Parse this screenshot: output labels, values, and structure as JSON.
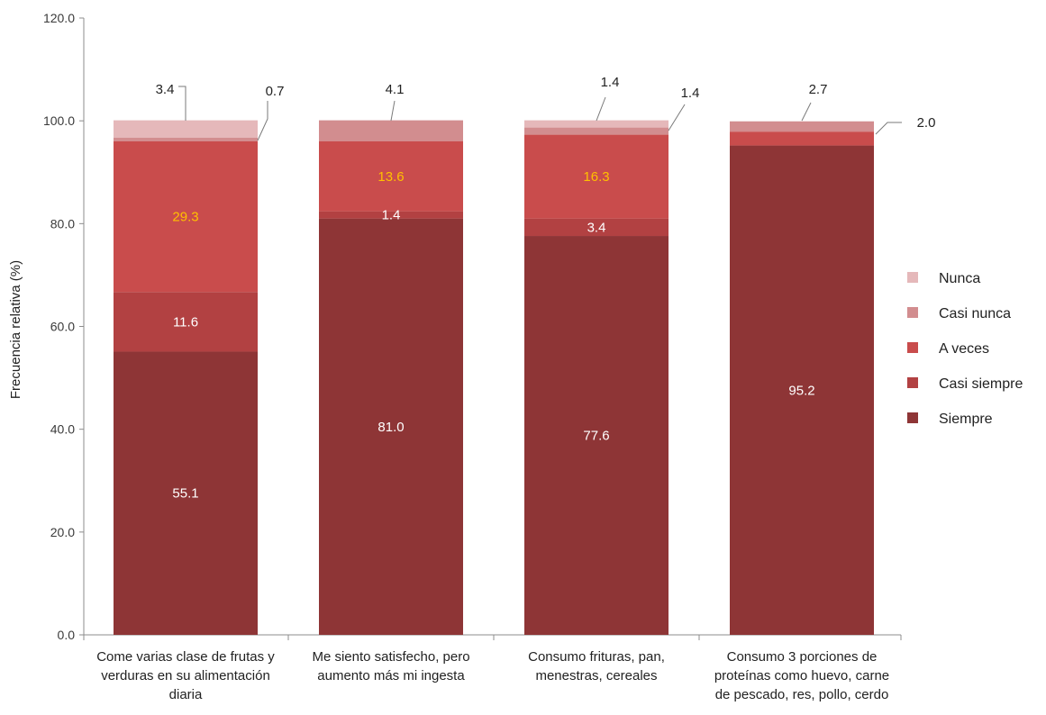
{
  "chart_data": {
    "type": "bar",
    "stacked": true,
    "ylabel": "Frecuencia relativa (%)",
    "ylim": [
      0,
      120
    ],
    "yticks": [
      "0.0",
      "20.0",
      "40.0",
      "60.0",
      "80.0",
      "100.0",
      "120.0"
    ],
    "grid": false,
    "legend_position": "right",
    "categories": [
      [
        "Come varias clase de frutas y",
        "verduras en su alimentación",
        "diaria"
      ],
      [
        "Me siento satisfecho, pero",
        "aumento más mi ingesta"
      ],
      [
        "Consumo frituras, pan,",
        "menestras, cereales"
      ],
      [
        "Consumo 3 porciones de",
        "proteínas como huevo, carne",
        "de pescado, res, pollo, cerdo"
      ]
    ],
    "series": [
      {
        "name": "Siempre",
        "color": "#8e3536",
        "label_color": "#ffffff",
        "values": [
          55.1,
          81.0,
          77.6,
          95.2
        ],
        "labels": [
          "55.1",
          "81.0",
          "77.6",
          "95.2"
        ]
      },
      {
        "name": "Casi siempre",
        "color": "#b24142",
        "label_color": "#ffffff",
        "values": [
          11.6,
          1.4,
          3.4,
          0.0
        ],
        "labels": [
          "11.6",
          "1.4",
          "3.4",
          ""
        ]
      },
      {
        "name": "A veces",
        "color": "#c94c4c",
        "label_color": "#ffc000",
        "values": [
          29.3,
          13.6,
          16.3,
          2.7
        ],
        "labels": [
          "29.3",
          "13.6",
          "16.3",
          "2.7"
        ]
      },
      {
        "name": "Casi nunca",
        "color": "#d28d8f",
        "label_color": "#222222",
        "values": [
          0.7,
          4.1,
          1.4,
          2.0
        ],
        "labels": [
          "0.7",
          "4.1",
          "1.4",
          "2.0"
        ]
      },
      {
        "name": "Nunca",
        "color": "#e5b8ba",
        "label_color": "#222222",
        "values": [
          3.4,
          0.0,
          1.4,
          0.0
        ],
        "labels": [
          "3.4",
          "",
          "1.4",
          ""
        ]
      }
    ]
  }
}
